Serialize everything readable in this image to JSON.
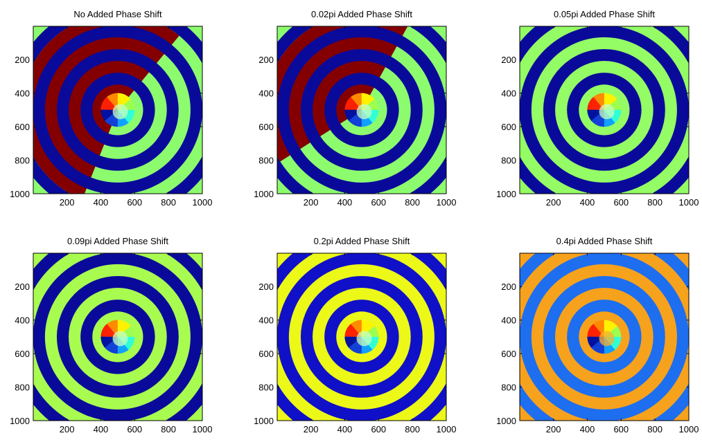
{
  "chart_data": [
    {
      "type": "heatmap",
      "title": "No Added Phase Shift",
      "xlim": [
        1,
        1000
      ],
      "ylim": [
        1000,
        1
      ],
      "x_ticks": [
        200,
        400,
        600,
        800,
        1000
      ],
      "y_ticks": [
        200,
        400,
        600,
        800,
        1000
      ],
      "grid": false,
      "colors": {
        "band_even": "#0a0a9a",
        "band_odd": "#8cfc6e",
        "wedge": "#840000",
        "background": "#8cfc6e"
      }
    },
    {
      "type": "heatmap",
      "title": "0.02pi Added Phase Shift",
      "xlim": [
        1,
        1000
      ],
      "ylim": [
        1000,
        1
      ],
      "x_ticks": [
        200,
        400,
        600,
        800,
        1000
      ],
      "y_ticks": [
        200,
        400,
        600,
        800,
        1000
      ],
      "grid": false,
      "colors": {
        "band_even": "#0a0a9a",
        "band_odd": "#8cfc6e",
        "wedge": "#840000",
        "background": "#8cfc6e"
      }
    },
    {
      "type": "heatmap",
      "title": "0.05pi Added Phase Shift",
      "xlim": [
        1,
        1000
      ],
      "ylim": [
        1000,
        1
      ],
      "x_ticks": [
        200,
        400,
        600,
        800,
        1000
      ],
      "y_ticks": [
        200,
        400,
        600,
        800,
        1000
      ],
      "grid": false,
      "colors": {
        "band_even": "#0a0a9a",
        "band_odd": "#94fc64",
        "wedge": null,
        "background": "#94fc64"
      }
    },
    {
      "type": "heatmap",
      "title": "0.09pi Added Phase Shift",
      "xlim": [
        1,
        1000
      ],
      "ylim": [
        1000,
        1
      ],
      "x_ticks": [
        200,
        400,
        600,
        800,
        1000
      ],
      "y_ticks": [
        200,
        400,
        600,
        800,
        1000
      ],
      "grid": false,
      "colors": {
        "band_even": "#0a0a9a",
        "band_odd": "#a8fc50",
        "wedge": null,
        "background": "#a8fc50"
      }
    },
    {
      "type": "heatmap",
      "title": "0.2pi Added Phase Shift",
      "xlim": [
        1,
        1000
      ],
      "ylim": [
        1000,
        1
      ],
      "x_ticks": [
        200,
        400,
        600,
        800,
        1000
      ],
      "y_ticks": [
        200,
        400,
        600,
        800,
        1000
      ],
      "grid": false,
      "colors": {
        "band_even": "#1010c8",
        "band_odd": "#ecf818",
        "wedge": null,
        "background": "#ecf818"
      }
    },
    {
      "type": "heatmap",
      "title": "0.4pi Added Phase Shift",
      "xlim": [
        1,
        1000
      ],
      "ylim": [
        1000,
        1
      ],
      "x_ticks": [
        200,
        400,
        600,
        800,
        1000
      ],
      "y_ticks": [
        200,
        400,
        600,
        800,
        1000
      ],
      "grid": false,
      "colors": {
        "band_even": "#1e6ef0",
        "band_odd": "#f7a21c",
        "wedge": null,
        "background": "#f7a21c"
      }
    }
  ]
}
